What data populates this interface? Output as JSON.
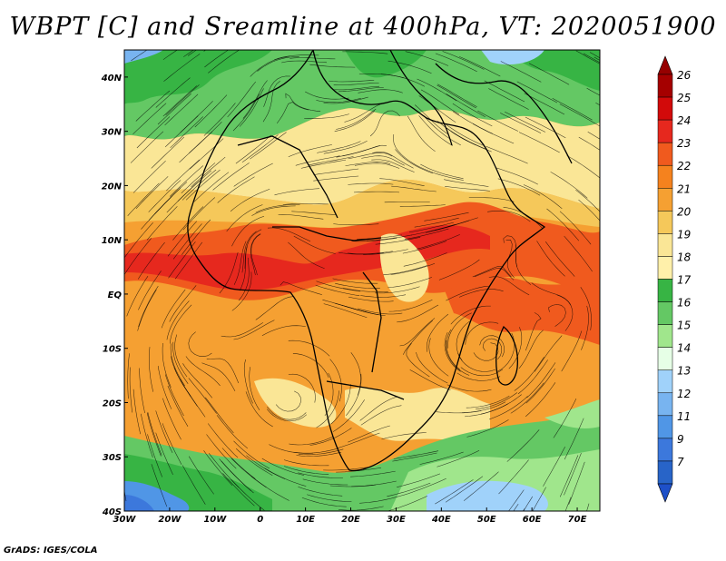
{
  "title": "WBPT [C] and Sreamline at 400hPa, VT: 2020051900",
  "credit": "GrADS: IGES/COLA",
  "map": {
    "lon_range": [
      -30,
      75
    ],
    "lat_range": [
      -40,
      45
    ],
    "lon_ticks": [
      {
        "value": -30,
        "label": "30W"
      },
      {
        "value": -20,
        "label": "20W"
      },
      {
        "value": -10,
        "label": "10W"
      },
      {
        "value": 0,
        "label": "0"
      },
      {
        "value": 10,
        "label": "10E"
      },
      {
        "value": 20,
        "label": "20E"
      },
      {
        "value": 30,
        "label": "30E"
      },
      {
        "value": 40,
        "label": "40E"
      },
      {
        "value": 50,
        "label": "50E"
      },
      {
        "value": 60,
        "label": "60E"
      },
      {
        "value": 70,
        "label": "70E"
      }
    ],
    "lat_ticks": [
      {
        "value": 40,
        "label": "40N"
      },
      {
        "value": 30,
        "label": "30N"
      },
      {
        "value": 20,
        "label": "20N"
      },
      {
        "value": 10,
        "label": "10N"
      },
      {
        "value": 0,
        "label": "EQ"
      },
      {
        "value": -10,
        "label": "10S"
      },
      {
        "value": -20,
        "label": "20S"
      },
      {
        "value": -30,
        "label": "30S"
      },
      {
        "value": -40,
        "label": "40S"
      }
    ]
  },
  "colorbar": {
    "levels": [
      {
        "label": "26",
        "color": "#a50000"
      },
      {
        "label": "25",
        "color": "#d20a0a"
      },
      {
        "label": "24",
        "color": "#e6281e"
      },
      {
        "label": "23",
        "color": "#f05a1e"
      },
      {
        "label": "22",
        "color": "#f5821e"
      },
      {
        "label": "21",
        "color": "#f5a032"
      },
      {
        "label": "20",
        "color": "#f5c85a"
      },
      {
        "label": "19",
        "color": "#fae696"
      },
      {
        "label": "18",
        "color": "#fff0aa"
      },
      {
        "label": "17",
        "color": "#37b444"
      },
      {
        "label": "16",
        "color": "#64c864"
      },
      {
        "label": "15",
        "color": "#a0e68c"
      },
      {
        "label": "14",
        "color": "#e6ffe6"
      },
      {
        "label": "13",
        "color": "#a0d2fa"
      },
      {
        "label": "12",
        "color": "#78b4f0"
      },
      {
        "label": "11",
        "color": "#5096e6"
      },
      {
        "label": "9",
        "color": "#3c78dc"
      },
      {
        "label": "7",
        "color": "#2864c8"
      }
    ],
    "top_triangle_color": "#960000",
    "bottom_triangle_color": "#1e50c8"
  }
}
